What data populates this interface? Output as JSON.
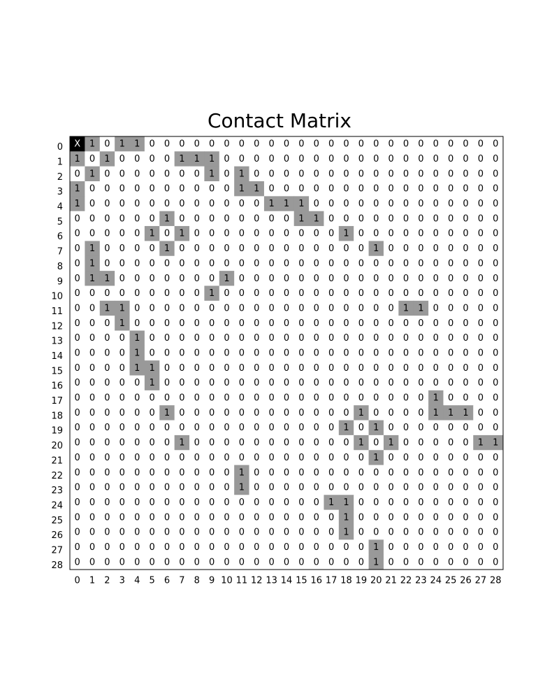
{
  "chart_data": {
    "type": "heatmap",
    "title": "Contact Matrix",
    "x_labels": [
      "0",
      "1",
      "2",
      "3",
      "4",
      "5",
      "6",
      "7",
      "8",
      "9",
      "10",
      "11",
      "12",
      "13",
      "14",
      "15",
      "16",
      "17",
      "18",
      "19",
      "20",
      "21",
      "22",
      "23",
      "24",
      "25",
      "26",
      "27",
      "28"
    ],
    "y_labels": [
      "0",
      "1",
      "2",
      "3",
      "4",
      "5",
      "6",
      "7",
      "8",
      "9",
      "10",
      "11",
      "12",
      "13",
      "14",
      "15",
      "16",
      "17",
      "18",
      "19",
      "20",
      "21",
      "22",
      "23",
      "24",
      "25",
      "26",
      "27",
      "28"
    ],
    "values": [
      [
        "X",
        "1",
        "0",
        "1",
        "1",
        "0",
        "0",
        "0",
        "0",
        "0",
        "0",
        "0",
        "0",
        "0",
        "0",
        "0",
        "0",
        "0",
        "0",
        "0",
        "0",
        "0",
        "0",
        "0",
        "0",
        "0",
        "0",
        "0",
        "0"
      ],
      [
        "1",
        "0",
        "1",
        "0",
        "0",
        "0",
        "0",
        "1",
        "1",
        "1",
        "0",
        "0",
        "0",
        "0",
        "0",
        "0",
        "0",
        "0",
        "0",
        "0",
        "0",
        "0",
        "0",
        "0",
        "0",
        "0",
        "0",
        "0",
        "0"
      ],
      [
        "0",
        "1",
        "0",
        "0",
        "0",
        "0",
        "0",
        "0",
        "0",
        "1",
        "0",
        "1",
        "0",
        "0",
        "0",
        "0",
        "0",
        "0",
        "0",
        "0",
        "0",
        "0",
        "0",
        "0",
        "0",
        "0",
        "0",
        "0",
        "0"
      ],
      [
        "1",
        "0",
        "0",
        "0",
        "0",
        "0",
        "0",
        "0",
        "0",
        "0",
        "0",
        "1",
        "1",
        "0",
        "0",
        "0",
        "0",
        "0",
        "0",
        "0",
        "0",
        "0",
        "0",
        "0",
        "0",
        "0",
        "0",
        "0",
        "0"
      ],
      [
        "1",
        "0",
        "0",
        "0",
        "0",
        "0",
        "0",
        "0",
        "0",
        "0",
        "0",
        "0",
        "0",
        "1",
        "1",
        "1",
        "0",
        "0",
        "0",
        "0",
        "0",
        "0",
        "0",
        "0",
        "0",
        "0",
        "0",
        "0",
        "0"
      ],
      [
        "0",
        "0",
        "0",
        "0",
        "0",
        "0",
        "1",
        "0",
        "0",
        "0",
        "0",
        "0",
        "0",
        "0",
        "0",
        "1",
        "1",
        "0",
        "0",
        "0",
        "0",
        "0",
        "0",
        "0",
        "0",
        "0",
        "0",
        "0",
        "0"
      ],
      [
        "0",
        "0",
        "0",
        "0",
        "0",
        "1",
        "0",
        "1",
        "0",
        "0",
        "0",
        "0",
        "0",
        "0",
        "0",
        "0",
        "0",
        "0",
        "1",
        "0",
        "0",
        "0",
        "0",
        "0",
        "0",
        "0",
        "0",
        "0",
        "0"
      ],
      [
        "0",
        "1",
        "0",
        "0",
        "0",
        "0",
        "1",
        "0",
        "0",
        "0",
        "0",
        "0",
        "0",
        "0",
        "0",
        "0",
        "0",
        "0",
        "0",
        "0",
        "1",
        "0",
        "0",
        "0",
        "0",
        "0",
        "0",
        "0",
        "0"
      ],
      [
        "0",
        "1",
        "0",
        "0",
        "0",
        "0",
        "0",
        "0",
        "0",
        "0",
        "0",
        "0",
        "0",
        "0",
        "0",
        "0",
        "0",
        "0",
        "0",
        "0",
        "0",
        "0",
        "0",
        "0",
        "0",
        "0",
        "0",
        "0",
        "0"
      ],
      [
        "0",
        "1",
        "1",
        "0",
        "0",
        "0",
        "0",
        "0",
        "0",
        "0",
        "1",
        "0",
        "0",
        "0",
        "0",
        "0",
        "0",
        "0",
        "0",
        "0",
        "0",
        "0",
        "0",
        "0",
        "0",
        "0",
        "0",
        "0",
        "0"
      ],
      [
        "0",
        "0",
        "0",
        "0",
        "0",
        "0",
        "0",
        "0",
        "0",
        "1",
        "0",
        "0",
        "0",
        "0",
        "0",
        "0",
        "0",
        "0",
        "0",
        "0",
        "0",
        "0",
        "0",
        "0",
        "0",
        "0",
        "0",
        "0",
        "0"
      ],
      [
        "0",
        "0",
        "1",
        "1",
        "0",
        "0",
        "0",
        "0",
        "0",
        "0",
        "0",
        "0",
        "0",
        "0",
        "0",
        "0",
        "0",
        "0",
        "0",
        "0",
        "0",
        "0",
        "1",
        "1",
        "0",
        "0",
        "0",
        "0",
        "0"
      ],
      [
        "0",
        "0",
        "0",
        "1",
        "0",
        "0",
        "0",
        "0",
        "0",
        "0",
        "0",
        "0",
        "0",
        "0",
        "0",
        "0",
        "0",
        "0",
        "0",
        "0",
        "0",
        "0",
        "0",
        "0",
        "0",
        "0",
        "0",
        "0",
        "0"
      ],
      [
        "0",
        "0",
        "0",
        "0",
        "1",
        "0",
        "0",
        "0",
        "0",
        "0",
        "0",
        "0",
        "0",
        "0",
        "0",
        "0",
        "0",
        "0",
        "0",
        "0",
        "0",
        "0",
        "0",
        "0",
        "0",
        "0",
        "0",
        "0",
        "0"
      ],
      [
        "0",
        "0",
        "0",
        "0",
        "1",
        "0",
        "0",
        "0",
        "0",
        "0",
        "0",
        "0",
        "0",
        "0",
        "0",
        "0",
        "0",
        "0",
        "0",
        "0",
        "0",
        "0",
        "0",
        "0",
        "0",
        "0",
        "0",
        "0",
        "0"
      ],
      [
        "0",
        "0",
        "0",
        "0",
        "1",
        "1",
        "0",
        "0",
        "0",
        "0",
        "0",
        "0",
        "0",
        "0",
        "0",
        "0",
        "0",
        "0",
        "0",
        "0",
        "0",
        "0",
        "0",
        "0",
        "0",
        "0",
        "0",
        "0",
        "0"
      ],
      [
        "0",
        "0",
        "0",
        "0",
        "0",
        "1",
        "0",
        "0",
        "0",
        "0",
        "0",
        "0",
        "0",
        "0",
        "0",
        "0",
        "0",
        "0",
        "0",
        "0",
        "0",
        "0",
        "0",
        "0",
        "0",
        "0",
        "0",
        "0",
        "0"
      ],
      [
        "0",
        "0",
        "0",
        "0",
        "0",
        "0",
        "0",
        "0",
        "0",
        "0",
        "0",
        "0",
        "0",
        "0",
        "0",
        "0",
        "0",
        "0",
        "0",
        "0",
        "0",
        "0",
        "0",
        "0",
        "1",
        "0",
        "0",
        "0",
        "0"
      ],
      [
        "0",
        "0",
        "0",
        "0",
        "0",
        "0",
        "1",
        "0",
        "0",
        "0",
        "0",
        "0",
        "0",
        "0",
        "0",
        "0",
        "0",
        "0",
        "0",
        "1",
        "0",
        "0",
        "0",
        "0",
        "1",
        "1",
        "1",
        "0",
        "0"
      ],
      [
        "0",
        "0",
        "0",
        "0",
        "0",
        "0",
        "0",
        "0",
        "0",
        "0",
        "0",
        "0",
        "0",
        "0",
        "0",
        "0",
        "0",
        "0",
        "1",
        "0",
        "1",
        "0",
        "0",
        "0",
        "0",
        "0",
        "0",
        "0",
        "0"
      ],
      [
        "0",
        "0",
        "0",
        "0",
        "0",
        "0",
        "0",
        "1",
        "0",
        "0",
        "0",
        "0",
        "0",
        "0",
        "0",
        "0",
        "0",
        "0",
        "0",
        "1",
        "0",
        "1",
        "0",
        "0",
        "0",
        "0",
        "0",
        "1",
        "1"
      ],
      [
        "0",
        "0",
        "0",
        "0",
        "0",
        "0",
        "0",
        "0",
        "0",
        "0",
        "0",
        "0",
        "0",
        "0",
        "0",
        "0",
        "0",
        "0",
        "0",
        "0",
        "1",
        "0",
        "0",
        "0",
        "0",
        "0",
        "0",
        "0",
        "0"
      ],
      [
        "0",
        "0",
        "0",
        "0",
        "0",
        "0",
        "0",
        "0",
        "0",
        "0",
        "0",
        "1",
        "0",
        "0",
        "0",
        "0",
        "0",
        "0",
        "0",
        "0",
        "0",
        "0",
        "0",
        "0",
        "0",
        "0",
        "0",
        "0",
        "0"
      ],
      [
        "0",
        "0",
        "0",
        "0",
        "0",
        "0",
        "0",
        "0",
        "0",
        "0",
        "0",
        "1",
        "0",
        "0",
        "0",
        "0",
        "0",
        "0",
        "0",
        "0",
        "0",
        "0",
        "0",
        "0",
        "0",
        "0",
        "0",
        "0",
        "0"
      ],
      [
        "0",
        "0",
        "0",
        "0",
        "0",
        "0",
        "0",
        "0",
        "0",
        "0",
        "0",
        "0",
        "0",
        "0",
        "0",
        "0",
        "0",
        "1",
        "1",
        "0",
        "0",
        "0",
        "0",
        "0",
        "0",
        "0",
        "0",
        "0",
        "0"
      ],
      [
        "0",
        "0",
        "0",
        "0",
        "0",
        "0",
        "0",
        "0",
        "0",
        "0",
        "0",
        "0",
        "0",
        "0",
        "0",
        "0",
        "0",
        "0",
        "1",
        "0",
        "0",
        "0",
        "0",
        "0",
        "0",
        "0",
        "0",
        "0",
        "0"
      ],
      [
        "0",
        "0",
        "0",
        "0",
        "0",
        "0",
        "0",
        "0",
        "0",
        "0",
        "0",
        "0",
        "0",
        "0",
        "0",
        "0",
        "0",
        "0",
        "1",
        "0",
        "0",
        "0",
        "0",
        "0",
        "0",
        "0",
        "0",
        "0",
        "0"
      ],
      [
        "0",
        "0",
        "0",
        "0",
        "0",
        "0",
        "0",
        "0",
        "0",
        "0",
        "0",
        "0",
        "0",
        "0",
        "0",
        "0",
        "0",
        "0",
        "0",
        "0",
        "1",
        "0",
        "0",
        "0",
        "0",
        "0",
        "0",
        "0",
        "0"
      ],
      [
        "0",
        "0",
        "0",
        "0",
        "0",
        "0",
        "0",
        "0",
        "0",
        "0",
        "0",
        "0",
        "0",
        "0",
        "0",
        "0",
        "0",
        "0",
        "0",
        "0",
        "1",
        "0",
        "0",
        "0",
        "0",
        "0",
        "0",
        "0",
        "0"
      ]
    ],
    "colors": {
      "one": "#999999",
      "zero": "#ffffff",
      "self": "#000000",
      "text": "#000000",
      "self_text": "#ffffff"
    },
    "grid": false
  }
}
